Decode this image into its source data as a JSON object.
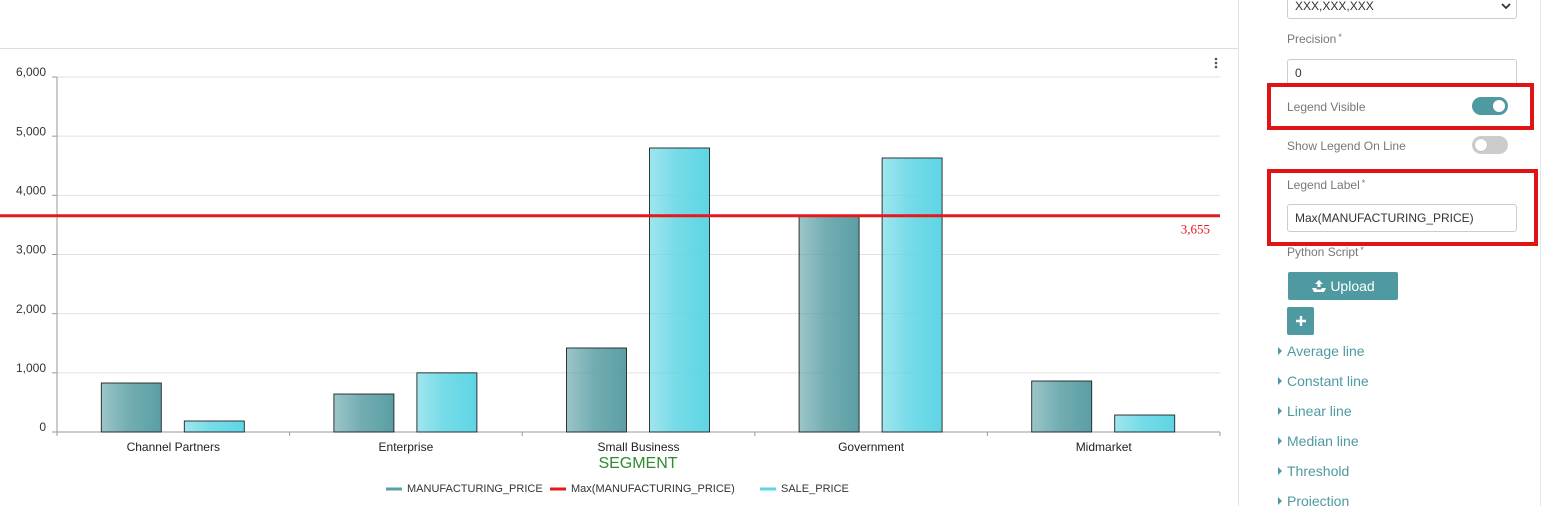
{
  "chart_data": {
    "type": "bar",
    "x_label": "SEGMENT",
    "categories": [
      "Channel Partners",
      "Enterprise",
      "Small Business",
      "Government",
      "Midmarket"
    ],
    "series": [
      {
        "name": "MANUFACTURING_PRICE",
        "color": "#5a9fa5",
        "values": [
          828,
          642,
          1420,
          3655,
          862
        ]
      },
      {
        "name": "SALE_PRICE",
        "color": "#5ed5e4",
        "values": [
          186,
          1000,
          4800,
          4631,
          287
        ]
      }
    ],
    "reference_line": {
      "name": "Max(MANUFACTURING_PRICE)",
      "value": 3655,
      "value_label": "3,655",
      "color": "#e3191c"
    },
    "ylim": [
      0,
      6000
    ],
    "yticks": [
      0,
      {
        "value": 1000,
        "label": "1,000"
      },
      {
        "value": 2000,
        "label": "2,000"
      },
      {
        "value": 3000,
        "label": "3,000"
      },
      {
        "value": 4000,
        "label": "4,000"
      },
      {
        "value": 5000,
        "label": "5,000"
      },
      {
        "value": 6000,
        "label": "6,000"
      }
    ],
    "grid": true,
    "legend": "bottom"
  },
  "settings_panel": {
    "format_select": "XXX,XXX,XXX",
    "precision": {
      "label": "Precision",
      "required": "*",
      "value": "0"
    },
    "legend_visible": {
      "label": "Legend Visible",
      "on": true
    },
    "show_legend_on_line": {
      "label": "Show Legend On Line",
      "on": false
    },
    "legend_label": {
      "label": "Legend Label",
      "required": "*",
      "value": "Max(MANUFACTURING_PRICE)"
    },
    "python_script": {
      "label": "Python Script",
      "required": "*",
      "button": "Upload"
    },
    "sections": [
      "Average line",
      "Constant line",
      "Linear line",
      "Median line",
      "Threshold",
      "Projection"
    ]
  }
}
